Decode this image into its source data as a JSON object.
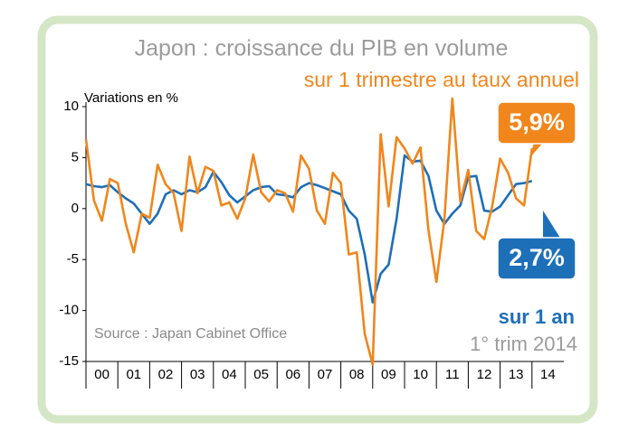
{
  "chart_data": {
    "type": "line",
    "title": "Japon : croissance du PIB en volume",
    "subtitle": "sur 1 trimestre au taux annuel",
    "y_label": "Variations en %",
    "source": "Source : Japan Cabinet Office",
    "note_blue": "sur 1 an",
    "note_date": "1° trim 2014",
    "x": [
      2000,
      2000.25,
      2000.5,
      2000.75,
      2001,
      2001.25,
      2001.5,
      2001.75,
      2002,
      2002.25,
      2002.5,
      2002.75,
      2003,
      2003.25,
      2003.5,
      2003.75,
      2004,
      2004.25,
      2004.5,
      2004.75,
      2005,
      2005.25,
      2005.5,
      2005.75,
      2006,
      2006.25,
      2006.5,
      2006.75,
      2007,
      2007.25,
      2007.5,
      2007.75,
      2008,
      2008.25,
      2008.5,
      2008.75,
      2009,
      2009.25,
      2009.5,
      2009.75,
      2010,
      2010.25,
      2010.5,
      2010.75,
      2011,
      2011.25,
      2011.5,
      2011.75,
      2012,
      2012.25,
      2012.5,
      2012.75,
      2013,
      2013.25,
      2013.5,
      2013.75,
      2014
    ],
    "series": [
      {
        "name": "sur 1 trimestre au taux annuel",
        "color": "#f0861c",
        "last_label": "5,9%",
        "values": [
          6.8,
          0.8,
          -1.2,
          2.9,
          2.5,
          -1.5,
          -4.3,
          -0.5,
          -0.9,
          4.3,
          2.4,
          1.5,
          -2.2,
          5.1,
          1.5,
          4.1,
          3.7,
          0.3,
          0.6,
          -1.0,
          1.0,
          5.3,
          1.6,
          0.7,
          1.8,
          1.5,
          -0.3,
          5.2,
          3.9,
          -0.2,
          -1.5,
          3.5,
          2.5,
          -4.5,
          -4.3,
          -12.3,
          -15.3,
          7.3,
          0.2,
          7.0,
          5.9,
          4.4,
          6.0,
          -2.1,
          -7.2,
          -1.1,
          10.8,
          0.7,
          3.8,
          -2.2,
          -3.0,
          0.2,
          4.9,
          3.5,
          1.0,
          0.3,
          5.9
        ]
      },
      {
        "name": "sur 1 an",
        "color": "#1d6fb8",
        "last_label": "2,7%",
        "values": [
          2.4,
          2.2,
          2.1,
          2.3,
          1.6,
          1.0,
          0.5,
          -0.5,
          -1.5,
          -0.5,
          1.4,
          1.8,
          1.4,
          1.8,
          1.6,
          2.1,
          3.6,
          2.6,
          1.3,
          0.6,
          1.2,
          1.8,
          2.1,
          2.2,
          1.4,
          1.3,
          1.1,
          2.1,
          2.5,
          2.3,
          2.0,
          1.7,
          1.4,
          -0.2,
          -1.0,
          -4.5,
          -9.2,
          -6.4,
          -5.5,
          -1.0,
          5.2,
          4.6,
          4.7,
          3.2,
          -0.2,
          -1.5,
          -0.5,
          0.3,
          3.1,
          3.2,
          -0.2,
          -0.3,
          0.2,
          1.3,
          2.4,
          2.5,
          2.7
        ]
      }
    ],
    "xlim": [
      2000,
      2015
    ],
    "xticks": [
      {
        "value": 2000.5,
        "label": "00"
      },
      {
        "value": 2001.5,
        "label": "01"
      },
      {
        "value": 2002.5,
        "label": "02"
      },
      {
        "value": 2003.5,
        "label": "03"
      },
      {
        "value": 2004.5,
        "label": "04"
      },
      {
        "value": 2005.5,
        "label": "05"
      },
      {
        "value": 2006.5,
        "label": "06"
      },
      {
        "value": 2007.5,
        "label": "07"
      },
      {
        "value": 2008.5,
        "label": "08"
      },
      {
        "value": 2009.5,
        "label": "09"
      },
      {
        "value": 2010.5,
        "label": "10"
      },
      {
        "value": 2011.5,
        "label": "11"
      },
      {
        "value": 2012.5,
        "label": "12"
      },
      {
        "value": 2013.5,
        "label": "13"
      },
      {
        "value": 2014.5,
        "label": "14"
      }
    ],
    "ylim": [
      -15,
      10
    ],
    "yticks": [
      -15,
      -10,
      -5,
      0,
      5,
      10
    ]
  }
}
